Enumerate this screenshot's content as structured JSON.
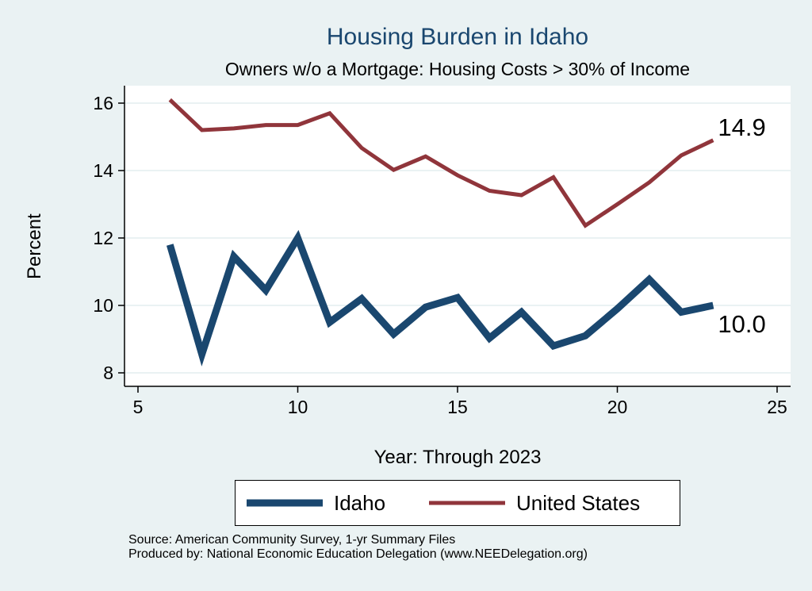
{
  "chart_data": {
    "type": "line",
    "title": "Housing Burden in Idaho",
    "subtitle": "Owners w/o a Mortgage: Housing Costs > 30% of Income",
    "xlabel": "Year: Through 2023",
    "ylabel": "Percent",
    "xlim": [
      5,
      25
    ],
    "ylim": [
      8,
      16
    ],
    "xticks": [
      "5",
      "10",
      "15",
      "20",
      "25"
    ],
    "yticks": [
      "8",
      "10",
      "12",
      "14",
      "16"
    ],
    "x": [
      6,
      7,
      8,
      9,
      10,
      11,
      12,
      13,
      14,
      15,
      16,
      17,
      18,
      19,
      20,
      21,
      22,
      23
    ],
    "series": [
      {
        "name": "Idaho",
        "color": "#1a476f",
        "values": [
          11.8,
          8.55,
          11.45,
          10.45,
          12.0,
          9.5,
          10.2,
          9.15,
          9.95,
          10.23,
          9.03,
          9.8,
          8.8,
          9.1,
          9.9,
          10.77,
          9.8,
          10.0
        ],
        "end_label": "10.0"
      },
      {
        "name": "United States",
        "color": "#90353b",
        "values": [
          16.1,
          15.2,
          15.25,
          15.35,
          15.35,
          15.7,
          14.67,
          14.02,
          14.42,
          13.86,
          13.4,
          13.27,
          13.8,
          12.37,
          13.0,
          13.65,
          14.45,
          14.9
        ],
        "end_label": "14.9"
      }
    ],
    "grid": true,
    "legend_position": "bottom"
  },
  "notes": {
    "source": "Source: American Community Survey, 1-yr Summary Files",
    "produced": "Produced by: National Economic Education Delegation (www.NEEDelegation.org)"
  }
}
